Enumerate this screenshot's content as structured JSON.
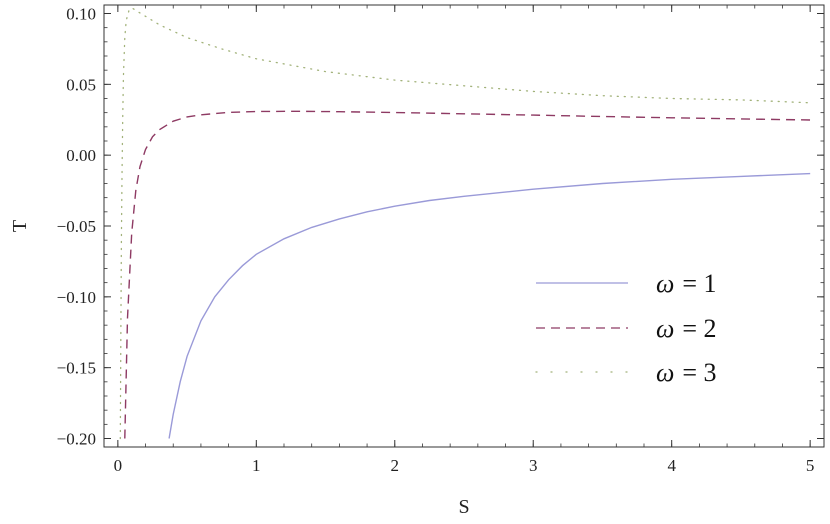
{
  "chart_data": {
    "type": "line",
    "title": "",
    "xlabel": "S",
    "ylabel": "T",
    "xlim": [
      -0.1,
      5.1
    ],
    "ylim": [
      -0.206,
      0.106
    ],
    "xticks": [
      0,
      1,
      2,
      3,
      4,
      5
    ],
    "xtick_labels": [
      "0",
      "1",
      "2",
      "3",
      "4",
      "5"
    ],
    "yticks": [
      0.1,
      0.05,
      0.0,
      -0.05,
      -0.1,
      -0.15,
      -0.2
    ],
    "ytick_labels": [
      "0.10",
      "0.05",
      "0.00",
      "−0.05",
      "−0.10",
      "−0.15",
      "−0.20"
    ],
    "grid": false,
    "legend_position": "right-middle",
    "series": [
      {
        "name": "ω = 1",
        "legend_symbol": "ω",
        "legend_value": "= 1",
        "style": "solid",
        "color": "#9a9ad8",
        "x": [
          0.37,
          0.4,
          0.45,
          0.5,
          0.6,
          0.7,
          0.8,
          0.9,
          1.0,
          1.2,
          1.4,
          1.6,
          1.8,
          2.0,
          2.25,
          2.5,
          3.0,
          3.5,
          4.0,
          4.5,
          5.0
        ],
        "y": [
          -0.2,
          -0.183,
          -0.16,
          -0.142,
          -0.117,
          -0.1,
          -0.088,
          -0.078,
          -0.07,
          -0.059,
          -0.051,
          -0.045,
          -0.04,
          -0.036,
          -0.032,
          -0.029,
          -0.024,
          -0.02,
          -0.017,
          -0.015,
          -0.013
        ]
      },
      {
        "name": "ω = 2",
        "legend_symbol": "ω",
        "legend_value": "= 2",
        "style": "dashed",
        "color": "#8e3a63",
        "x": [
          0.05,
          0.07,
          0.1,
          0.13,
          0.16,
          0.2,
          0.25,
          0.3,
          0.4,
          0.5,
          0.6,
          0.8,
          1.0,
          1.3,
          1.6,
          2.0,
          2.5,
          3.0,
          3.5,
          4.0,
          4.5,
          5.0
        ],
        "y": [
          -0.2,
          -0.115,
          -0.055,
          -0.025,
          -0.008,
          0.004,
          0.013,
          0.018,
          0.024,
          0.027,
          0.0285,
          0.0302,
          0.0308,
          0.031,
          0.0307,
          0.0301,
          0.0292,
          0.0283,
          0.0273,
          0.0264,
          0.0256,
          0.0248
        ]
      },
      {
        "name": "ω = 3",
        "legend_symbol": "ω",
        "legend_value": "= 3",
        "style": "dotted",
        "color": "#a2b27a",
        "x": [
          0.018,
          0.022,
          0.026,
          0.03,
          0.035,
          0.04,
          0.05,
          0.06,
          0.08,
          0.1,
          0.15,
          0.2,
          0.3,
          0.5,
          0.75,
          1.0,
          1.5,
          2.0,
          2.5,
          3.0,
          3.5,
          4.0,
          4.5,
          5.0
        ],
        "y": [
          -0.2,
          -0.12,
          -0.06,
          -0.015,
          0.025,
          0.055,
          0.083,
          0.095,
          0.102,
          0.104,
          0.101,
          0.098,
          0.092,
          0.083,
          0.075,
          0.068,
          0.059,
          0.053,
          0.049,
          0.045,
          0.042,
          0.04,
          0.039,
          0.037
        ]
      }
    ]
  }
}
